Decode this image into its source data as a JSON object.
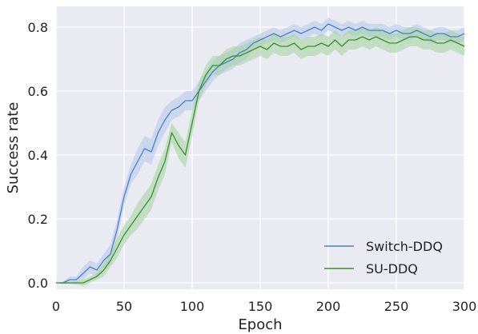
{
  "chart_data": {
    "type": "line",
    "title": "",
    "xlabel": "Epoch",
    "ylabel": "Success rate",
    "xlim": [
      0,
      300
    ],
    "ylim": [
      -0.02,
      0.865
    ],
    "xticks": [
      0,
      50,
      100,
      150,
      200,
      250,
      300
    ],
    "yticks": [
      0.0,
      0.2,
      0.4,
      0.6,
      0.8
    ],
    "xtick_labels": [
      "0",
      "50",
      "100",
      "150",
      "200",
      "250",
      "300"
    ],
    "ytick_labels": [
      "0.0",
      "0.2",
      "0.4",
      "0.6",
      "0.8"
    ],
    "grid": true,
    "legend_position": "lower-right",
    "background": "#EAEAF2",
    "series": [
      {
        "name": "Switch-DDQ",
        "color": "#4C7FC5",
        "band_color": "#AFC6EA",
        "x": [
          0,
          5,
          10,
          15,
          20,
          25,
          30,
          35,
          40,
          45,
          50,
          55,
          60,
          65,
          70,
          75,
          80,
          85,
          90,
          95,
          100,
          105,
          110,
          115,
          120,
          125,
          130,
          135,
          140,
          145,
          150,
          155,
          160,
          165,
          170,
          175,
          180,
          185,
          190,
          195,
          200,
          205,
          210,
          215,
          220,
          225,
          230,
          235,
          240,
          245,
          250,
          255,
          260,
          265,
          270,
          275,
          280,
          285,
          290,
          295,
          300
        ],
        "y": [
          0.0,
          0.0,
          0.01,
          0.01,
          0.03,
          0.05,
          0.04,
          0.07,
          0.09,
          0.17,
          0.27,
          0.34,
          0.38,
          0.42,
          0.41,
          0.47,
          0.51,
          0.54,
          0.55,
          0.57,
          0.57,
          0.6,
          0.63,
          0.66,
          0.68,
          0.69,
          0.7,
          0.72,
          0.73,
          0.75,
          0.76,
          0.77,
          0.78,
          0.77,
          0.78,
          0.79,
          0.78,
          0.79,
          0.8,
          0.79,
          0.81,
          0.8,
          0.79,
          0.8,
          0.79,
          0.8,
          0.79,
          0.79,
          0.79,
          0.78,
          0.79,
          0.78,
          0.78,
          0.79,
          0.78,
          0.77,
          0.78,
          0.78,
          0.77,
          0.77,
          0.78
        ],
        "spread": [
          0.0,
          0.003,
          0.01,
          0.01,
          0.02,
          0.02,
          0.02,
          0.02,
          0.03,
          0.03,
          0.03,
          0.03,
          0.04,
          0.04,
          0.04,
          0.04,
          0.04,
          0.03,
          0.03,
          0.03,
          0.03,
          0.03,
          0.03,
          0.03,
          0.03,
          0.03,
          0.03,
          0.03,
          0.03,
          0.02,
          0.02,
          0.02,
          0.02,
          0.02,
          0.02,
          0.02,
          0.02,
          0.02,
          0.02,
          0.02,
          0.02,
          0.02,
          0.02,
          0.02,
          0.02,
          0.02,
          0.02,
          0.02,
          0.02,
          0.02,
          0.02,
          0.02,
          0.02,
          0.02,
          0.02,
          0.02,
          0.02,
          0.02,
          0.02,
          0.02,
          0.02
        ]
      },
      {
        "name": "SU-DDQ",
        "color": "#3A8F2E",
        "band_color": "#9FD19B",
        "x": [
          0,
          5,
          10,
          15,
          20,
          25,
          30,
          35,
          40,
          45,
          50,
          55,
          60,
          65,
          70,
          75,
          80,
          85,
          90,
          95,
          100,
          105,
          110,
          115,
          120,
          125,
          130,
          135,
          140,
          145,
          150,
          155,
          160,
          165,
          170,
          175,
          180,
          185,
          190,
          195,
          200,
          205,
          210,
          215,
          220,
          225,
          230,
          235,
          240,
          245,
          250,
          255,
          260,
          265,
          270,
          275,
          280,
          285,
          290,
          295,
          300
        ],
        "y": [
          0.0,
          0.0,
          0.0,
          0.0,
          0.0,
          0.01,
          0.02,
          0.04,
          0.07,
          0.11,
          0.15,
          0.18,
          0.21,
          0.24,
          0.27,
          0.33,
          0.38,
          0.47,
          0.43,
          0.4,
          0.5,
          0.6,
          0.65,
          0.68,
          0.68,
          0.7,
          0.71,
          0.71,
          0.72,
          0.73,
          0.74,
          0.73,
          0.75,
          0.74,
          0.74,
          0.75,
          0.73,
          0.74,
          0.74,
          0.75,
          0.74,
          0.76,
          0.74,
          0.76,
          0.76,
          0.77,
          0.76,
          0.77,
          0.76,
          0.75,
          0.75,
          0.76,
          0.77,
          0.77,
          0.76,
          0.76,
          0.75,
          0.75,
          0.76,
          0.75,
          0.74
        ],
        "spread": [
          0.0,
          0.003,
          0.003,
          0.005,
          0.01,
          0.01,
          0.01,
          0.02,
          0.02,
          0.03,
          0.03,
          0.03,
          0.04,
          0.04,
          0.04,
          0.04,
          0.04,
          0.03,
          0.04,
          0.04,
          0.04,
          0.03,
          0.03,
          0.03,
          0.03,
          0.03,
          0.03,
          0.03,
          0.03,
          0.03,
          0.03,
          0.03,
          0.03,
          0.03,
          0.03,
          0.03,
          0.03,
          0.03,
          0.03,
          0.03,
          0.03,
          0.03,
          0.03,
          0.03,
          0.03,
          0.03,
          0.03,
          0.03,
          0.03,
          0.03,
          0.03,
          0.03,
          0.03,
          0.03,
          0.03,
          0.03,
          0.03,
          0.03,
          0.03,
          0.03,
          0.03
        ]
      }
    ]
  }
}
